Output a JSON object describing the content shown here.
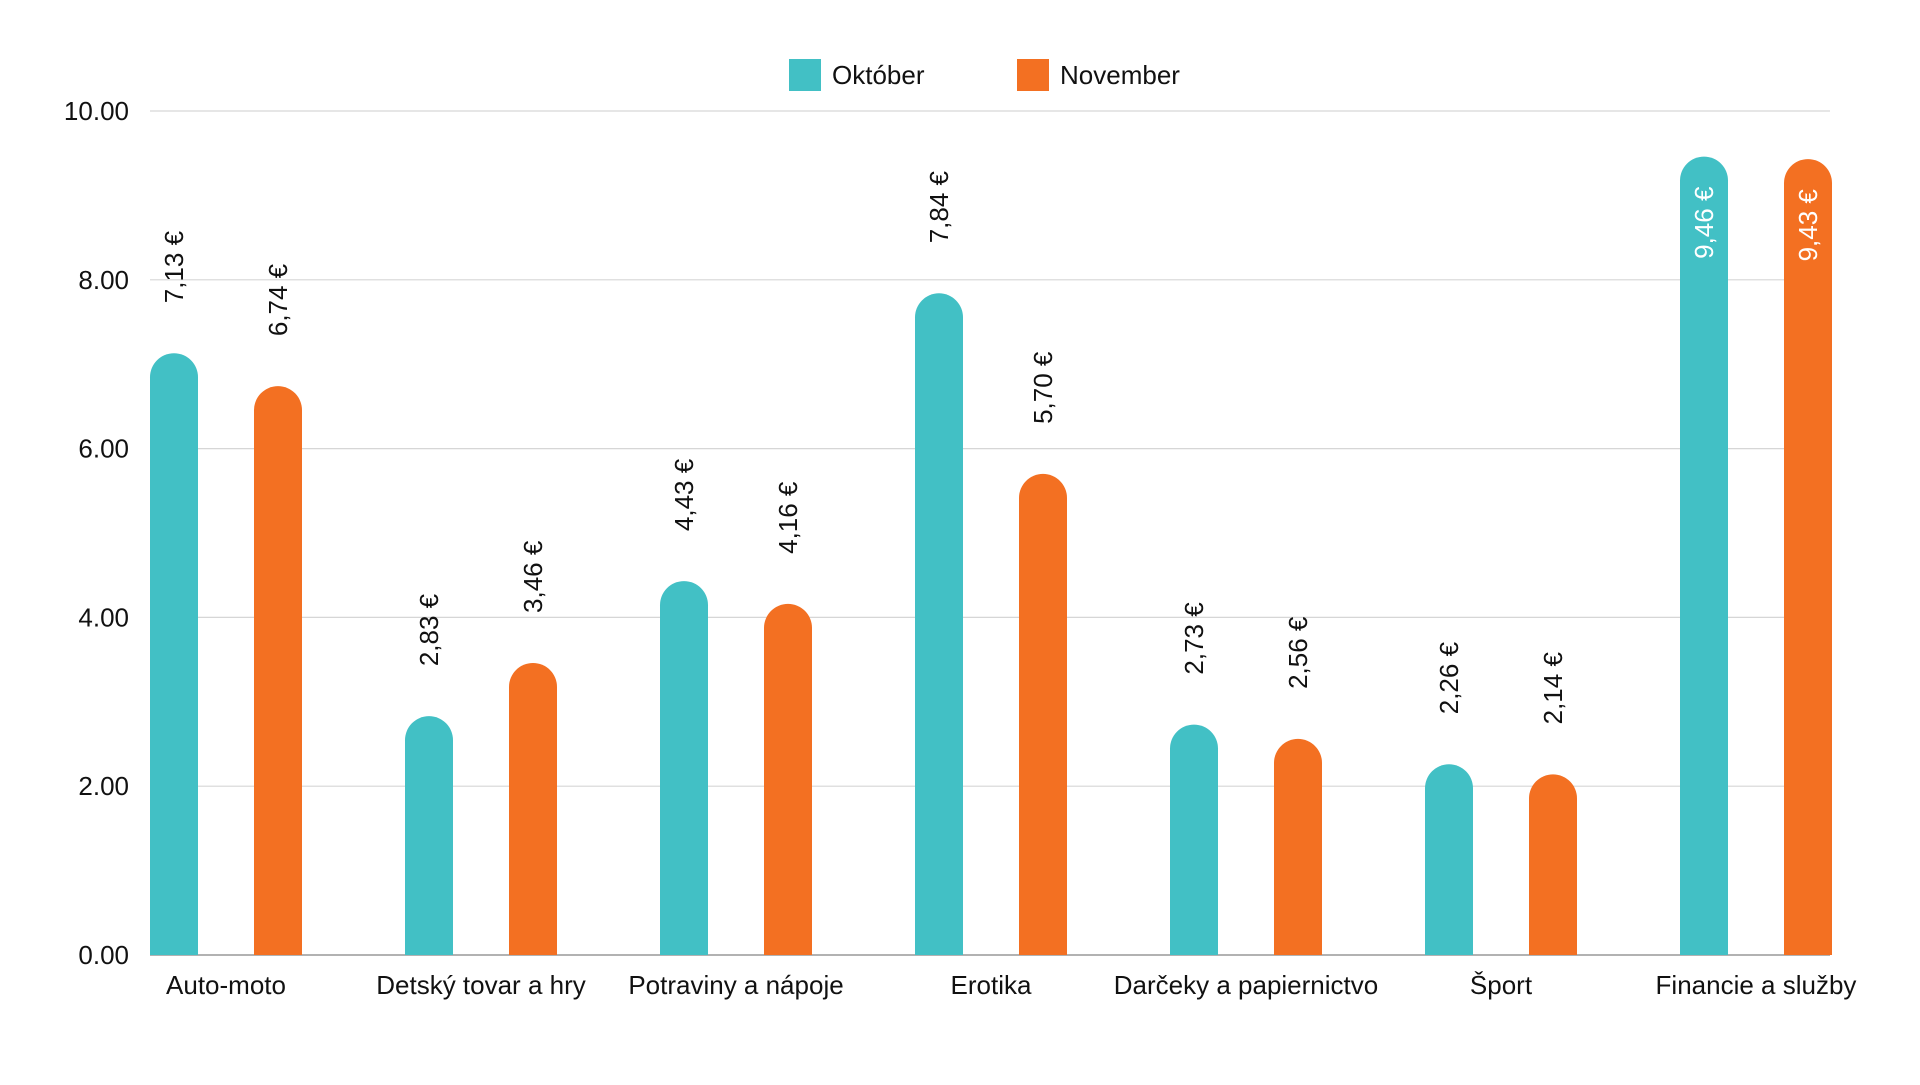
{
  "chart_data": {
    "type": "bar",
    "title": "",
    "xlabel": "",
    "ylabel": "",
    "ylim": [
      0,
      10
    ],
    "yticks": [
      "0.00",
      "2.00",
      "4.00",
      "6.00",
      "8.00",
      "10.00"
    ],
    "grid": true,
    "legend_position": "top-center",
    "categories": [
      "Auto-moto",
      "Detský tovar a hry",
      "Potraviny a nápoje",
      "Erotika",
      "Darčeky a papiernictvo",
      "Šport",
      "Financie a služby"
    ],
    "series": [
      {
        "name": "Október",
        "color": "#42c0c5",
        "values": [
          7.13,
          2.83,
          4.43,
          7.84,
          2.73,
          2.26,
          9.46
        ],
        "labels": [
          "7,13 €",
          "2,83 €",
          "4,43 €",
          "7,84 €",
          "2,73 €",
          "2,26 €",
          "9,46 €"
        ]
      },
      {
        "name": "November",
        "color": "#f37022",
        "values": [
          6.74,
          3.46,
          4.16,
          5.7,
          2.56,
          2.14,
          9.43
        ],
        "labels": [
          "6,74 €",
          "3,46 €",
          "4,16 €",
          "5,70 €",
          "2,56 €",
          "2,14 €",
          "9,43 €"
        ]
      }
    ]
  }
}
